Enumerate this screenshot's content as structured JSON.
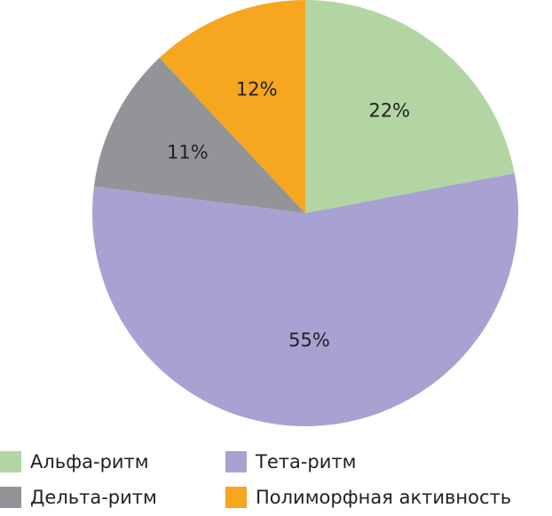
{
  "chart_data": {
    "type": "pie",
    "start_angle_deg": 0,
    "direction": "clockwise",
    "slices": [
      {
        "label": "Альфа-ритм",
        "value": 22,
        "value_label": "22%",
        "color": "#b3d5a3"
      },
      {
        "label": "Тета-ритм",
        "value": 55,
        "value_label": "55%",
        "color": "#a7a2d2"
      },
      {
        "label": "Дельта-ритм",
        "value": 11,
        "value_label": "11%",
        "color": "#929497"
      },
      {
        "label": "Полиморфная активность",
        "value": 12,
        "value_label": "12%",
        "color": "#f6a61f"
      }
    ],
    "legend": {
      "placement": "bottom",
      "items": [
        {
          "label": "Альфа-ритм",
          "color": "#b3d5a3"
        },
        {
          "label": "Тета-ритм",
          "color": "#a7a2d2"
        },
        {
          "label": "Дельта-ритм",
          "color": "#929497"
        },
        {
          "label": "Полиморфная активность",
          "color": "#f6a61f"
        }
      ]
    }
  }
}
